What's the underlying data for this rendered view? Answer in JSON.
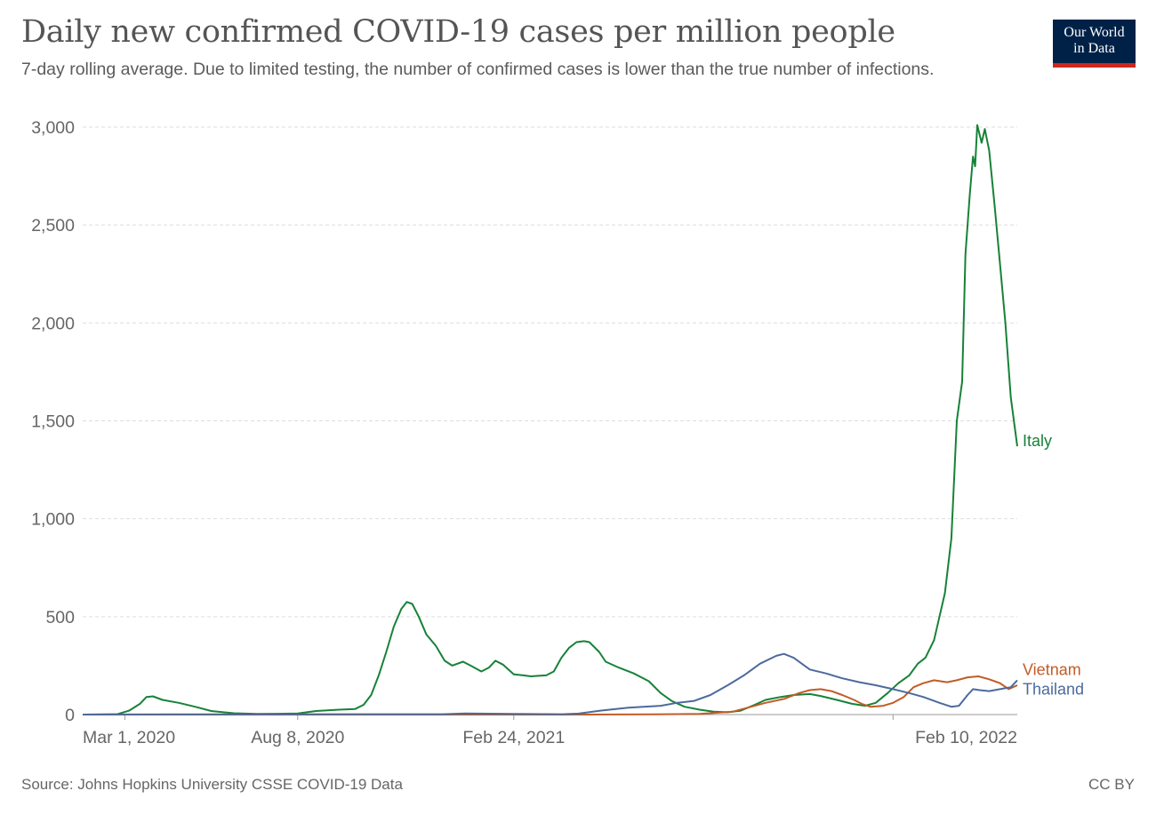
{
  "header": {
    "title": "Daily new confirmed COVID-19 cases per million people",
    "subtitle": "7-day rolling average. Due to limited testing, the number of confirmed cases is lower than the true number of infections."
  },
  "logo": {
    "line1": "Our World",
    "line2": "in Data",
    "bg_color": "#002147",
    "accent_color": "#ce261e"
  },
  "footer": {
    "source": "Source: Johns Hopkins University CSSE COVID-19 Data",
    "license": "CC BY"
  },
  "chart_data": {
    "type": "line",
    "x_start": "2020-01-22",
    "x_end": "2022-03-01",
    "ylim": [
      0,
      3000
    ],
    "y_ticks": [
      0,
      500,
      1000,
      1500,
      2000,
      2500,
      3000
    ],
    "y_tick_labels": [
      "0",
      "500",
      "1,000",
      "1,500",
      "2,000",
      "2,500",
      "3,000"
    ],
    "x_ticks": [
      {
        "date": "2020-03-01",
        "label": "Mar 1, 2020"
      },
      {
        "date": "2020-08-08",
        "label": "Aug 8, 2020"
      },
      {
        "date": "2021-02-24",
        "label": "Feb 24, 2021"
      },
      {
        "date": "2022-02-10",
        "label": "Feb 10, 2022"
      }
    ],
    "grid": "horizontal-dashed",
    "legend": "inline-right",
    "series": [
      {
        "name": "Italy",
        "color": "#178238",
        "points": [
          [
            "2020-01-22",
            0
          ],
          [
            "2020-02-23",
            2
          ],
          [
            "2020-03-05",
            20
          ],
          [
            "2020-03-15",
            55
          ],
          [
            "2020-03-21",
            90
          ],
          [
            "2020-03-27",
            93
          ],
          [
            "2020-04-05",
            75
          ],
          [
            "2020-04-20",
            60
          ],
          [
            "2020-05-05",
            40
          ],
          [
            "2020-05-20",
            18
          ],
          [
            "2020-06-10",
            7
          ],
          [
            "2020-07-01",
            3
          ],
          [
            "2020-07-20",
            4
          ],
          [
            "2020-08-08",
            6
          ],
          [
            "2020-08-25",
            18
          ],
          [
            "2020-09-15",
            25
          ],
          [
            "2020-09-30",
            28
          ],
          [
            "2020-10-08",
            50
          ],
          [
            "2020-10-15",
            100
          ],
          [
            "2020-10-22",
            200
          ],
          [
            "2020-10-29",
            320
          ],
          [
            "2020-11-05",
            450
          ],
          [
            "2020-11-12",
            540
          ],
          [
            "2020-11-17",
            575
          ],
          [
            "2020-11-22",
            565
          ],
          [
            "2020-11-28",
            500
          ],
          [
            "2020-12-05",
            410
          ],
          [
            "2020-12-14",
            350
          ],
          [
            "2020-12-22",
            275
          ],
          [
            "2020-12-29",
            250
          ],
          [
            "2021-01-08",
            270
          ],
          [
            "2021-01-15",
            250
          ],
          [
            "2021-01-25",
            220
          ],
          [
            "2021-02-01",
            240
          ],
          [
            "2021-02-07",
            275
          ],
          [
            "2021-02-14",
            255
          ],
          [
            "2021-02-24",
            205
          ],
          [
            "2021-03-05",
            200
          ],
          [
            "2021-03-12",
            195
          ],
          [
            "2021-03-19",
            198
          ],
          [
            "2021-03-26",
            200
          ],
          [
            "2021-04-02",
            220
          ],
          [
            "2021-04-09",
            290
          ],
          [
            "2021-04-16",
            340
          ],
          [
            "2021-04-23",
            370
          ],
          [
            "2021-04-30",
            375
          ],
          [
            "2021-05-05",
            370
          ],
          [
            "2021-05-14",
            320
          ],
          [
            "2021-05-20",
            270
          ],
          [
            "2021-06-01",
            240
          ],
          [
            "2021-06-15",
            210
          ],
          [
            "2021-06-29",
            170
          ],
          [
            "2021-07-10",
            110
          ],
          [
            "2021-07-20",
            70
          ],
          [
            "2021-08-01",
            40
          ],
          [
            "2021-08-15",
            25
          ],
          [
            "2021-08-28",
            15
          ],
          [
            "2021-09-10",
            12
          ],
          [
            "2021-09-22",
            20
          ],
          [
            "2021-10-05",
            50
          ],
          [
            "2021-10-15",
            75
          ],
          [
            "2021-10-29",
            90
          ],
          [
            "2021-11-10",
            100
          ],
          [
            "2021-11-25",
            105
          ],
          [
            "2021-12-05",
            95
          ],
          [
            "2021-12-20",
            75
          ],
          [
            "2022-01-03",
            55
          ],
          [
            "2022-01-15",
            45
          ],
          [
            "2022-01-25",
            60
          ],
          [
            "2022-02-05",
            110
          ],
          [
            "2022-02-15",
            160
          ],
          [
            "2022-02-25",
            200
          ],
          [
            "2022-03-05",
            260
          ],
          [
            "2022-03-12",
            290
          ],
          [
            "2022-03-20",
            380
          ],
          [
            "2022-03-25",
            500
          ],
          [
            "2022-03-30",
            620
          ],
          [
            "2022-04-05",
            900
          ],
          [
            "2022-04-10",
            1500
          ],
          [
            "2022-04-15",
            1700
          ],
          [
            "2022-04-18",
            2350
          ],
          [
            "2022-04-22",
            2650
          ],
          [
            "2022-04-25",
            2850
          ],
          [
            "2022-04-27",
            2800
          ],
          [
            "2022-04-29",
            3010
          ],
          [
            "2022-05-03",
            2920
          ],
          [
            "2022-05-06",
            2990
          ],
          [
            "2022-05-10",
            2880
          ],
          [
            "2022-05-15",
            2600
          ],
          [
            "2022-05-20",
            2300
          ],
          [
            "2022-05-25",
            2000
          ],
          [
            "2022-05-30",
            1620
          ],
          [
            "2022-06-05",
            1370
          ]
        ]
      },
      {
        "name": "Vietnam",
        "color": "#c15c26",
        "points": [
          [
            "2020-01-22",
            0
          ],
          [
            "2021-04-30",
            0
          ],
          [
            "2021-07-01",
            1
          ],
          [
            "2021-08-15",
            3
          ],
          [
            "2021-09-15",
            15
          ],
          [
            "2021-10-15",
            60
          ],
          [
            "2021-11-01",
            80
          ],
          [
            "2021-11-15",
            110
          ],
          [
            "2021-11-25",
            125
          ],
          [
            "2021-12-05",
            130
          ],
          [
            "2021-12-15",
            120
          ],
          [
            "2021-12-25",
            100
          ],
          [
            "2022-01-05",
            75
          ],
          [
            "2022-01-12",
            55
          ],
          [
            "2022-01-20",
            40
          ],
          [
            "2022-02-01",
            45
          ],
          [
            "2022-02-10",
            60
          ],
          [
            "2022-02-20",
            90
          ],
          [
            "2022-03-01",
            140
          ],
          [
            "2022-03-10",
            160
          ],
          [
            "2022-03-20",
            175
          ],
          [
            "2022-04-01",
            165
          ],
          [
            "2022-04-10",
            175
          ],
          [
            "2022-04-20",
            190
          ],
          [
            "2022-04-30",
            195
          ],
          [
            "2022-05-10",
            180
          ],
          [
            "2022-05-20",
            160
          ],
          [
            "2022-05-28",
            130
          ],
          [
            "2022-06-05",
            150
          ]
        ]
      },
      {
        "name": "Thailand",
        "color": "#4c6a9c",
        "points": [
          [
            "2020-01-22",
            0
          ],
          [
            "2020-04-15",
            1
          ],
          [
            "2020-12-20",
            2
          ],
          [
            "2021-01-10",
            6
          ],
          [
            "2021-02-24",
            3
          ],
          [
            "2021-04-10",
            2
          ],
          [
            "2021-04-25",
            5
          ],
          [
            "2021-05-15",
            20
          ],
          [
            "2021-06-10",
            35
          ],
          [
            "2021-07-10",
            45
          ],
          [
            "2021-07-25",
            60
          ],
          [
            "2021-08-10",
            70
          ],
          [
            "2021-08-25",
            100
          ],
          [
            "2021-09-10",
            150
          ],
          [
            "2021-09-25",
            200
          ],
          [
            "2021-10-10",
            260
          ],
          [
            "2021-10-25",
            300
          ],
          [
            "2021-11-01",
            310
          ],
          [
            "2021-11-10",
            290
          ],
          [
            "2021-11-25",
            230
          ],
          [
            "2021-12-10",
            210
          ],
          [
            "2021-12-25",
            185
          ],
          [
            "2022-01-10",
            165
          ],
          [
            "2022-01-25",
            150
          ],
          [
            "2022-02-10",
            130
          ],
          [
            "2022-02-25",
            110
          ],
          [
            "2022-03-10",
            90
          ],
          [
            "2022-03-25",
            60
          ],
          [
            "2022-04-05",
            40
          ],
          [
            "2022-04-12",
            45
          ],
          [
            "2022-04-20",
            100
          ],
          [
            "2022-04-25",
            130
          ],
          [
            "2022-05-01",
            125
          ],
          [
            "2022-05-10",
            120
          ],
          [
            "2022-05-20",
            130
          ],
          [
            "2022-05-30",
            140
          ],
          [
            "2022-06-05",
            175
          ]
        ]
      }
    ]
  }
}
